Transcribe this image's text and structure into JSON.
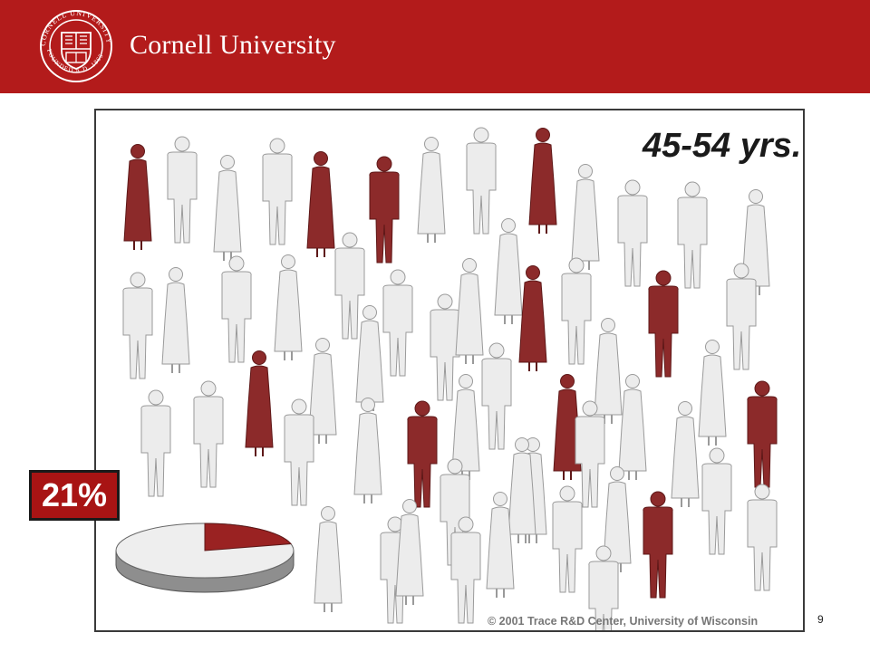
{
  "header": {
    "university_name": "Cornell University",
    "seal_text": "CORNELL UNIVERSITY FOUNDED A.D. 1865",
    "brand_color": "#b31b1b"
  },
  "illustration": {
    "age_group_label": "45-54 yrs.",
    "highlight_color": "#8c2a2a",
    "neutral_color": "#ececec",
    "highlighted_people_count": 14,
    "people_count": 66
  },
  "stat": {
    "percentage_label": "21%",
    "pie_fraction": 0.21
  },
  "footer": {
    "copyright": "© 2001 Trace R&D Center, University of Wisconsin",
    "page_number": "9"
  }
}
